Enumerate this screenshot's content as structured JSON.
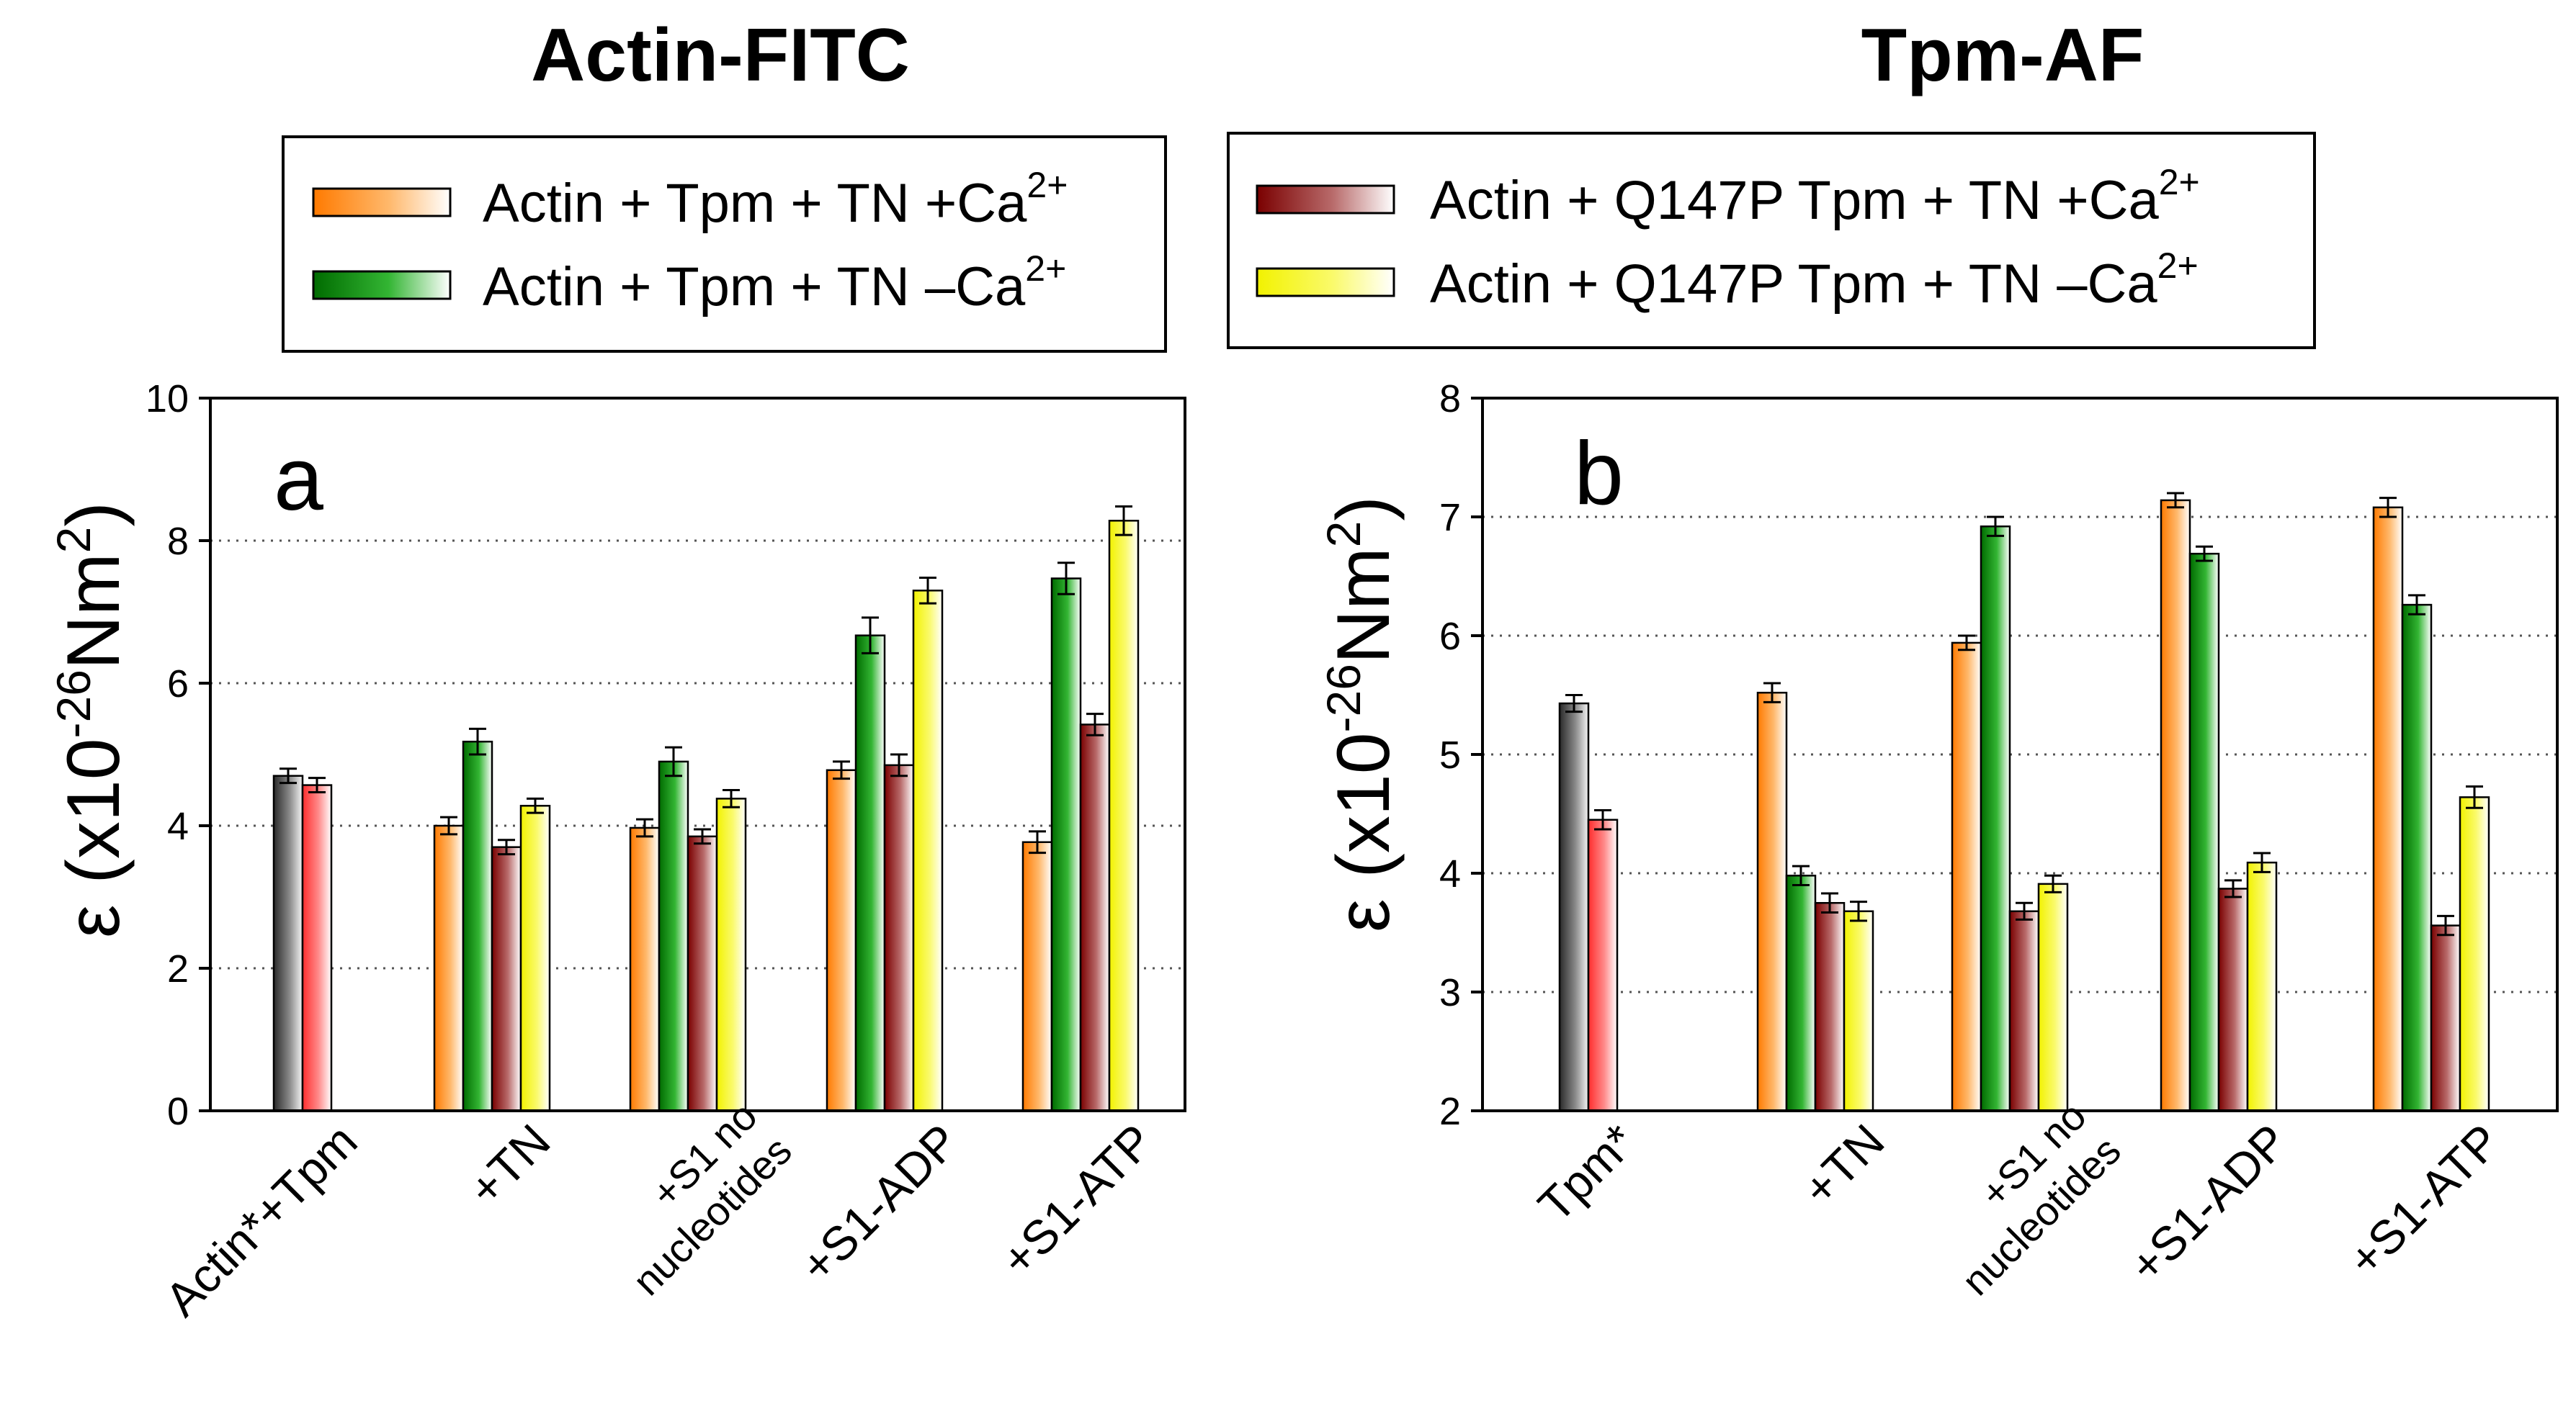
{
  "chart_data": [
    {
      "type": "bar",
      "title": "Actin-FITC",
      "panel_label": "a",
      "ylabel_parts": [
        "ε (x10",
        "-26",
        "Nm",
        "2",
        ")"
      ],
      "ylim": [
        0,
        10
      ],
      "yticks": [
        0,
        2,
        4,
        6,
        8,
        10
      ],
      "grid": "horizontal dotted",
      "legend": [
        {
          "text": "Actin + Tpm + TN +Ca",
          "sup": "2+",
          "gradient": "orange"
        },
        {
          "text": "Actin + Tpm + TN –Ca",
          "sup": "2+",
          "gradient": "green"
        }
      ],
      "groups": [
        {
          "label_lines": [
            "Actin*+Tpm"
          ],
          "small": false,
          "bars": [
            {
              "series": "Actin* (gray)",
              "color": "gray",
              "value": 4.7,
              "err": 0.1
            },
            {
              "series": "Actin* + Tpm (red)",
              "color": "red",
              "value": 4.57,
              "err": 0.1
            }
          ]
        },
        {
          "label_lines": [
            "+TN"
          ],
          "small": false,
          "bars": [
            {
              "series": "WT +Ca2+",
              "color": "orange",
              "value": 4.0,
              "err": 0.12
            },
            {
              "series": "WT –Ca2+",
              "color": "green",
              "value": 5.18,
              "err": 0.18
            },
            {
              "series": "Q147P +Ca2+",
              "color": "maroon",
              "value": 3.7,
              "err": 0.1
            },
            {
              "series": "Q147P –Ca2+",
              "color": "yellow",
              "value": 4.28,
              "err": 0.1
            }
          ]
        },
        {
          "label_lines": [
            "+S1 no",
            "nucleotides"
          ],
          "small": true,
          "bars": [
            {
              "series": "WT +Ca2+",
              "color": "orange",
              "value": 3.97,
              "err": 0.12
            },
            {
              "series": "WT –Ca2+",
              "color": "green",
              "value": 4.9,
              "err": 0.2
            },
            {
              "series": "Q147P +Ca2+",
              "color": "maroon",
              "value": 3.85,
              "err": 0.1
            },
            {
              "series": "Q147P –Ca2+",
              "color": "yellow",
              "value": 4.38,
              "err": 0.12
            }
          ]
        },
        {
          "label_lines": [
            "+S1-ADP"
          ],
          "small": false,
          "bars": [
            {
              "series": "WT +Ca2+",
              "color": "orange",
              "value": 4.78,
              "err": 0.12
            },
            {
              "series": "WT –Ca2+",
              "color": "green",
              "value": 6.67,
              "err": 0.25
            },
            {
              "series": "Q147P +Ca2+",
              "color": "maroon",
              "value": 4.85,
              "err": 0.15
            },
            {
              "series": "Q147P –Ca2+",
              "color": "yellow",
              "value": 7.3,
              "err": 0.18
            }
          ]
        },
        {
          "label_lines": [
            "+S1-ATP"
          ],
          "small": false,
          "bars": [
            {
              "series": "WT +Ca2+",
              "color": "orange",
              "value": 3.77,
              "err": 0.15
            },
            {
              "series": "WT –Ca2+",
              "color": "green",
              "value": 7.47,
              "err": 0.22
            },
            {
              "series": "Q147P +Ca2+",
              "color": "maroon",
              "value": 5.42,
              "err": 0.15
            },
            {
              "series": "Q147P –Ca2+",
              "color": "yellow",
              "value": 8.28,
              "err": 0.2
            }
          ]
        }
      ]
    },
    {
      "type": "bar",
      "title": "Tpm-AF",
      "panel_label": "b",
      "ylabel_parts": [
        "ε (x10",
        "-26",
        "Nm",
        "2",
        ")"
      ],
      "ylim": [
        2,
        8
      ],
      "yticks": [
        2,
        3,
        4,
        5,
        6,
        7,
        8
      ],
      "grid": "horizontal dotted",
      "legend": [
        {
          "text": "Actin + Q147P Tpm + TN +Ca",
          "sup": "2+",
          "gradient": "maroon"
        },
        {
          "text": "Actin + Q147P Tpm + TN –Ca",
          "sup": "2+",
          "gradient": "yellow"
        }
      ],
      "groups": [
        {
          "label_lines": [
            "Tpm*"
          ],
          "small": false,
          "bars": [
            {
              "series": "Tpm* (gray)",
              "color": "gray",
              "value": 5.43,
              "err": 0.07
            },
            {
              "series": "Q147P Tpm* (red)",
              "color": "red",
              "value": 4.45,
              "err": 0.08
            }
          ]
        },
        {
          "label_lines": [
            "+TN"
          ],
          "small": false,
          "bars": [
            {
              "series": "WT +Ca2+",
              "color": "orange",
              "value": 5.52,
              "err": 0.08
            },
            {
              "series": "WT –Ca2+",
              "color": "green",
              "value": 3.98,
              "err": 0.08
            },
            {
              "series": "Q147P +Ca2+",
              "color": "maroon",
              "value": 3.75,
              "err": 0.08
            },
            {
              "series": "Q147P –Ca2+",
              "color": "yellow",
              "value": 3.68,
              "err": 0.08
            }
          ]
        },
        {
          "label_lines": [
            "+S1 no",
            "nucleotides"
          ],
          "small": true,
          "bars": [
            {
              "series": "WT +Ca2+",
              "color": "orange",
              "value": 5.94,
              "err": 0.06
            },
            {
              "series": "WT –Ca2+",
              "color": "green",
              "value": 6.92,
              "err": 0.08
            },
            {
              "series": "Q147P +Ca2+",
              "color": "maroon",
              "value": 3.68,
              "err": 0.07
            },
            {
              "series": "Q147P –Ca2+",
              "color": "yellow",
              "value": 3.91,
              "err": 0.07
            }
          ]
        },
        {
          "label_lines": [
            "+S1-ADP"
          ],
          "small": false,
          "bars": [
            {
              "series": "WT +Ca2+",
              "color": "orange",
              "value": 7.14,
              "err": 0.06
            },
            {
              "series": "WT –Ca2+",
              "color": "green",
              "value": 6.69,
              "err": 0.06
            },
            {
              "series": "Q147P +Ca2+",
              "color": "maroon",
              "value": 3.87,
              "err": 0.07
            },
            {
              "series": "Q147P –Ca2+",
              "color": "yellow",
              "value": 4.09,
              "err": 0.08
            }
          ]
        },
        {
          "label_lines": [
            "+S1-ATP"
          ],
          "small": false,
          "bars": [
            {
              "series": "WT +Ca2+",
              "color": "orange",
              "value": 7.08,
              "err": 0.08
            },
            {
              "series": "WT –Ca2+",
              "color": "green",
              "value": 6.26,
              "err": 0.08
            },
            {
              "series": "Q147P +Ca2+",
              "color": "maroon",
              "value": 3.56,
              "err": 0.08
            },
            {
              "series": "Q147P –Ca2+",
              "color": "yellow",
              "value": 4.64,
              "err": 0.09
            }
          ]
        }
      ]
    }
  ]
}
